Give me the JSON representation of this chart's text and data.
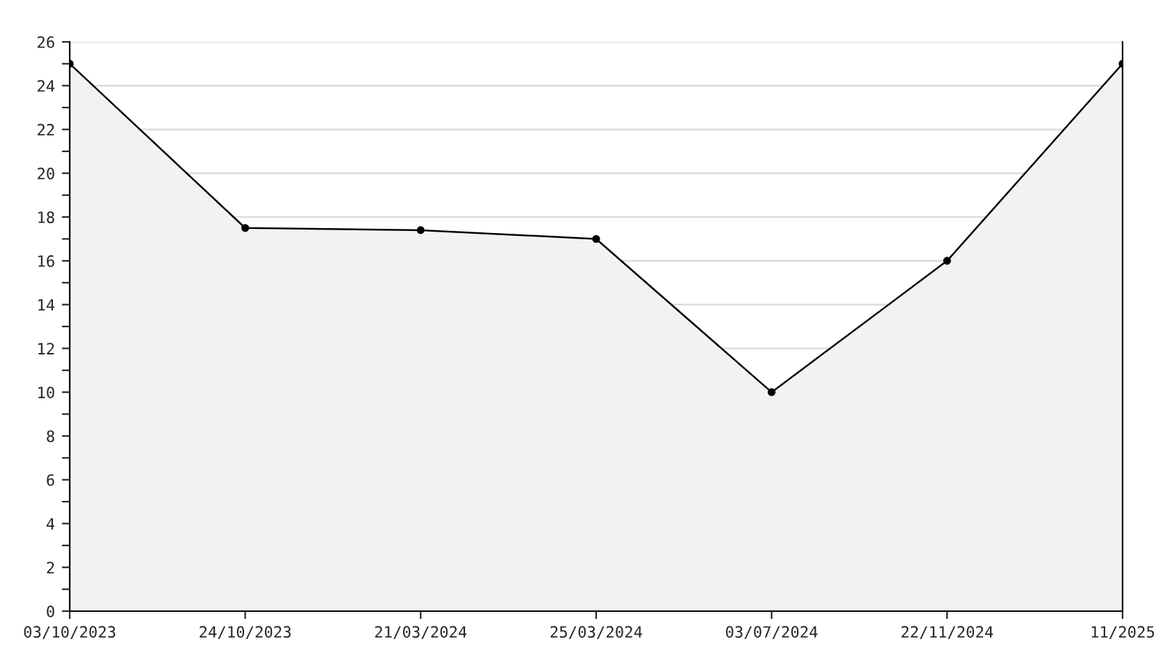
{
  "chart_data": {
    "type": "area",
    "categories": [
      "03/10/2023",
      "24/10/2023",
      "21/03/2024",
      "25/03/2024",
      "03/07/2024",
      "22/11/2024",
      "11/2025"
    ],
    "series": [
      {
        "color": "#f2f2f2",
        "values": [
          25,
          17.5,
          17.4,
          17,
          10,
          16,
          25
        ]
      }
    ],
    "ylim": [
      0,
      26
    ],
    "yticks": [
      0,
      {
        "value": 1,
        "label": null
      },
      2,
      {
        "value": 3,
        "label": null
      },
      4,
      {
        "value": 5,
        "label": null
      },
      6,
      {
        "value": 7,
        "label": null
      },
      8,
      {
        "value": 9,
        "label": null
      },
      10,
      {
        "value": 11,
        "label": null
      },
      12,
      {
        "value": 13,
        "label": null
      },
      14,
      {
        "value": 15,
        "label": null
      },
      16,
      {
        "value": 17,
        "label": null
      },
      18,
      {
        "value": 19,
        "label": null
      },
      20,
      {
        "value": 21,
        "label": null
      },
      22,
      {
        "value": 23,
        "label": null
      },
      24,
      {
        "value": 25,
        "label": null
      },
      26
    ],
    "grid": "y",
    "marker": "circle",
    "line_style": "solid",
    "legend": false
  }
}
